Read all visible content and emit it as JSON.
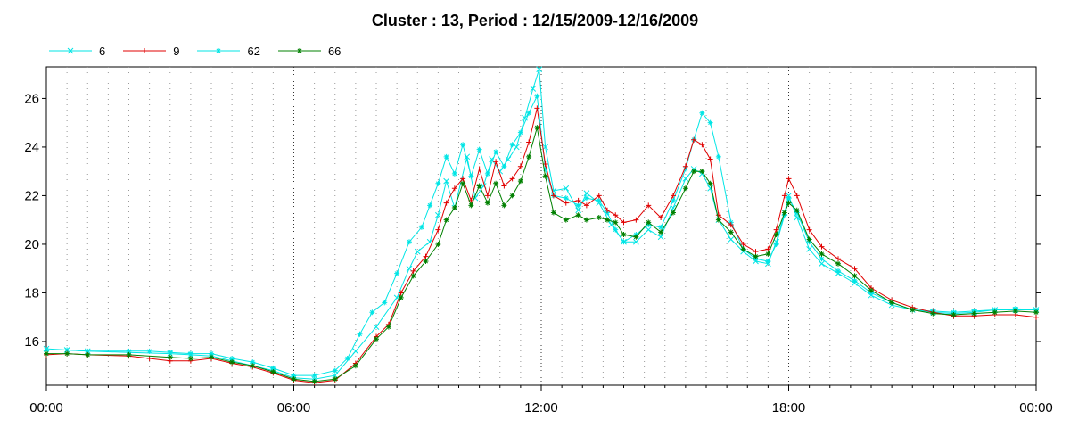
{
  "chart_data": {
    "type": "line",
    "title": "Cluster : 13, Period : 12/15/2009-12/16/2009",
    "xlabel": "",
    "ylabel": "",
    "x_unit": "hours",
    "xlim": [
      0,
      24
    ],
    "ylim": [
      14.2,
      27.3
    ],
    "x_ticks": [
      0,
      6,
      12,
      18,
      24
    ],
    "x_tick_labels": [
      "00:00",
      "06:00",
      "12:00",
      "18:00",
      "00:00"
    ],
    "y_ticks": [
      16,
      18,
      20,
      22,
      24,
      26
    ],
    "y_tick_labels": [
      "16",
      "18",
      "20",
      "22",
      "24",
      "26"
    ],
    "grid": true,
    "legend_position": "top-left",
    "series": [
      {
        "name": "6",
        "color": "#00e5e5",
        "marker": "x",
        "points": [
          [
            0,
            15.7
          ],
          [
            0.5,
            15.65
          ],
          [
            1,
            15.6
          ],
          [
            2,
            15.55
          ],
          [
            3,
            15.5
          ],
          [
            3.5,
            15.45
          ],
          [
            4,
            15.4
          ],
          [
            4.5,
            15.2
          ],
          [
            5,
            15.0
          ],
          [
            5.5,
            14.8
          ],
          [
            6,
            14.5
          ],
          [
            6.5,
            14.45
          ],
          [
            7,
            14.6
          ],
          [
            7.5,
            15.6
          ],
          [
            8,
            16.6
          ],
          [
            8.5,
            17.8
          ],
          [
            8.8,
            19.0
          ],
          [
            9,
            19.7
          ],
          [
            9.3,
            20.1
          ],
          [
            9.5,
            21.2
          ],
          [
            9.7,
            22.6
          ],
          [
            9.9,
            21.5
          ],
          [
            10.2,
            23.6
          ],
          [
            10.4,
            21.9
          ],
          [
            10.6,
            22.4
          ],
          [
            10.8,
            23.5
          ],
          [
            11,
            23.0
          ],
          [
            11.2,
            23.5
          ],
          [
            11.4,
            24.0
          ],
          [
            11.6,
            25.2
          ],
          [
            11.8,
            26.4
          ],
          [
            11.95,
            27.2
          ],
          [
            12.1,
            24.0
          ],
          [
            12.3,
            22.2
          ],
          [
            12.6,
            22.3
          ],
          [
            12.9,
            21.4
          ],
          [
            13.1,
            22.1
          ],
          [
            13.4,
            21.7
          ],
          [
            13.7,
            20.8
          ],
          [
            14,
            20.1
          ],
          [
            14.3,
            20.1
          ],
          [
            14.6,
            20.6
          ],
          [
            14.9,
            20.3
          ],
          [
            15.2,
            21.5
          ],
          [
            15.5,
            22.7
          ],
          [
            15.7,
            23.1
          ],
          [
            15.9,
            22.9
          ],
          [
            16.1,
            22.3
          ],
          [
            16.3,
            21.0
          ],
          [
            16.6,
            20.2
          ],
          [
            16.9,
            19.7
          ],
          [
            17.2,
            19.3
          ],
          [
            17.5,
            19.2
          ],
          [
            17.7,
            20.1
          ],
          [
            17.9,
            21.3
          ],
          [
            18.0,
            22.0
          ],
          [
            18.2,
            21.1
          ],
          [
            18.5,
            19.8
          ],
          [
            18.8,
            19.2
          ],
          [
            19.2,
            18.8
          ],
          [
            19.6,
            18.4
          ],
          [
            20,
            17.9
          ],
          [
            20.5,
            17.5
          ],
          [
            21,
            17.3
          ],
          [
            21.5,
            17.2
          ],
          [
            22,
            17.15
          ],
          [
            22.5,
            17.2
          ],
          [
            23,
            17.3
          ],
          [
            23.5,
            17.3
          ],
          [
            24,
            17.3
          ]
        ]
      },
      {
        "name": "9",
        "color": "#e00000",
        "marker": "+",
        "points": [
          [
            0,
            15.45
          ],
          [
            0.5,
            15.5
          ],
          [
            1,
            15.45
          ],
          [
            2,
            15.4
          ],
          [
            2.5,
            15.3
          ],
          [
            3,
            15.2
          ],
          [
            3.5,
            15.2
          ],
          [
            4,
            15.3
          ],
          [
            4.5,
            15.1
          ],
          [
            5,
            14.95
          ],
          [
            5.5,
            14.7
          ],
          [
            6,
            14.4
          ],
          [
            6.5,
            14.3
          ],
          [
            7,
            14.4
          ],
          [
            7.5,
            15.1
          ],
          [
            8,
            16.2
          ],
          [
            8.3,
            16.7
          ],
          [
            8.6,
            18.0
          ],
          [
            8.9,
            18.9
          ],
          [
            9.2,
            19.5
          ],
          [
            9.5,
            20.6
          ],
          [
            9.7,
            21.7
          ],
          [
            9.9,
            22.3
          ],
          [
            10.1,
            22.7
          ],
          [
            10.3,
            21.8
          ],
          [
            10.5,
            23.1
          ],
          [
            10.7,
            22.0
          ],
          [
            10.9,
            23.4
          ],
          [
            11.1,
            22.4
          ],
          [
            11.3,
            22.7
          ],
          [
            11.5,
            23.2
          ],
          [
            11.7,
            24.2
          ],
          [
            11.9,
            25.6
          ],
          [
            12.1,
            23.3
          ],
          [
            12.3,
            22.0
          ],
          [
            12.6,
            21.7
          ],
          [
            12.9,
            21.8
          ],
          [
            13.1,
            21.6
          ],
          [
            13.4,
            22.0
          ],
          [
            13.6,
            21.4
          ],
          [
            13.8,
            21.2
          ],
          [
            14,
            20.9
          ],
          [
            14.3,
            21.0
          ],
          [
            14.6,
            21.6
          ],
          [
            14.9,
            21.1
          ],
          [
            15.2,
            22.0
          ],
          [
            15.5,
            23.2
          ],
          [
            15.7,
            24.3
          ],
          [
            15.9,
            24.1
          ],
          [
            16.1,
            23.5
          ],
          [
            16.3,
            21.2
          ],
          [
            16.6,
            20.8
          ],
          [
            16.9,
            20.0
          ],
          [
            17.2,
            19.7
          ],
          [
            17.5,
            19.8
          ],
          [
            17.7,
            20.6
          ],
          [
            17.9,
            22.0
          ],
          [
            18.0,
            22.7
          ],
          [
            18.2,
            22.0
          ],
          [
            18.5,
            20.6
          ],
          [
            18.8,
            19.9
          ],
          [
            19.2,
            19.4
          ],
          [
            19.6,
            19.0
          ],
          [
            20,
            18.2
          ],
          [
            20.5,
            17.7
          ],
          [
            21,
            17.4
          ],
          [
            21.5,
            17.2
          ],
          [
            22,
            17.05
          ],
          [
            22.5,
            17.05
          ],
          [
            23,
            17.1
          ],
          [
            23.5,
            17.1
          ],
          [
            24,
            17.0
          ]
        ]
      },
      {
        "name": "62",
        "color": "#00e5e5",
        "marker": "*",
        "points": [
          [
            0,
            15.65
          ],
          [
            0.5,
            15.65
          ],
          [
            1,
            15.6
          ],
          [
            2,
            15.6
          ],
          [
            2.5,
            15.6
          ],
          [
            3,
            15.55
          ],
          [
            3.5,
            15.5
          ],
          [
            4,
            15.5
          ],
          [
            4.5,
            15.3
          ],
          [
            5,
            15.15
          ],
          [
            5.5,
            14.9
          ],
          [
            6,
            14.6
          ],
          [
            6.5,
            14.6
          ],
          [
            7,
            14.8
          ],
          [
            7.3,
            15.3
          ],
          [
            7.6,
            16.3
          ],
          [
            7.9,
            17.2
          ],
          [
            8.2,
            17.6
          ],
          [
            8.5,
            18.8
          ],
          [
            8.8,
            20.1
          ],
          [
            9.1,
            20.7
          ],
          [
            9.3,
            21.6
          ],
          [
            9.5,
            22.5
          ],
          [
            9.7,
            23.6
          ],
          [
            9.9,
            22.9
          ],
          [
            10.1,
            24.1
          ],
          [
            10.3,
            22.8
          ],
          [
            10.5,
            23.9
          ],
          [
            10.7,
            22.9
          ],
          [
            10.9,
            23.8
          ],
          [
            11.1,
            23.2
          ],
          [
            11.3,
            24.1
          ],
          [
            11.5,
            24.6
          ],
          [
            11.7,
            25.4
          ],
          [
            11.9,
            26.1
          ],
          [
            12.1,
            23.1
          ],
          [
            12.3,
            22.0
          ],
          [
            12.6,
            21.9
          ],
          [
            12.9,
            21.6
          ],
          [
            13.1,
            21.9
          ],
          [
            13.4,
            21.8
          ],
          [
            13.6,
            21.3
          ],
          [
            13.8,
            20.6
          ],
          [
            14,
            20.1
          ],
          [
            14.3,
            20.4
          ],
          [
            14.6,
            20.8
          ],
          [
            14.9,
            20.7
          ],
          [
            15.2,
            21.8
          ],
          [
            15.5,
            23.1
          ],
          [
            15.7,
            24.3
          ],
          [
            15.9,
            25.4
          ],
          [
            16.1,
            25.0
          ],
          [
            16.3,
            23.6
          ],
          [
            16.6,
            20.9
          ],
          [
            16.9,
            19.8
          ],
          [
            17.2,
            19.4
          ],
          [
            17.5,
            19.3
          ],
          [
            17.7,
            20.0
          ],
          [
            17.9,
            21.2
          ],
          [
            18.0,
            21.9
          ],
          [
            18.2,
            21.3
          ],
          [
            18.5,
            20.1
          ],
          [
            18.8,
            19.4
          ],
          [
            19.2,
            18.9
          ],
          [
            19.6,
            18.5
          ],
          [
            20,
            18.0
          ],
          [
            20.5,
            17.6
          ],
          [
            21,
            17.3
          ],
          [
            21.5,
            17.25
          ],
          [
            22,
            17.2
          ],
          [
            22.5,
            17.25
          ],
          [
            23,
            17.3
          ],
          [
            23.5,
            17.35
          ],
          [
            24,
            17.3
          ]
        ]
      },
      {
        "name": "66",
        "color": "#008000",
        "marker": "*",
        "points": [
          [
            0,
            15.5
          ],
          [
            0.5,
            15.5
          ],
          [
            1,
            15.45
          ],
          [
            2,
            15.45
          ],
          [
            3,
            15.35
          ],
          [
            3.5,
            15.3
          ],
          [
            4,
            15.35
          ],
          [
            4.5,
            15.15
          ],
          [
            5,
            15.0
          ],
          [
            5.5,
            14.75
          ],
          [
            6,
            14.45
          ],
          [
            6.5,
            14.35
          ],
          [
            7,
            14.45
          ],
          [
            7.5,
            15.0
          ],
          [
            8,
            16.1
          ],
          [
            8.3,
            16.6
          ],
          [
            8.6,
            17.8
          ],
          [
            8.9,
            18.7
          ],
          [
            9.2,
            19.3
          ],
          [
            9.5,
            20.0
          ],
          [
            9.7,
            21.0
          ],
          [
            9.9,
            21.5
          ],
          [
            10.1,
            22.5
          ],
          [
            10.3,
            21.6
          ],
          [
            10.5,
            22.4
          ],
          [
            10.7,
            21.7
          ],
          [
            10.9,
            22.5
          ],
          [
            11.1,
            21.6
          ],
          [
            11.3,
            22.0
          ],
          [
            11.5,
            22.6
          ],
          [
            11.7,
            23.6
          ],
          [
            11.9,
            24.8
          ],
          [
            12.1,
            22.8
          ],
          [
            12.3,
            21.3
          ],
          [
            12.6,
            21.0
          ],
          [
            12.9,
            21.2
          ],
          [
            13.1,
            21.0
          ],
          [
            13.4,
            21.1
          ],
          [
            13.6,
            21.0
          ],
          [
            13.8,
            20.9
          ],
          [
            14,
            20.4
          ],
          [
            14.3,
            20.3
          ],
          [
            14.6,
            20.9
          ],
          [
            14.9,
            20.5
          ],
          [
            15.2,
            21.3
          ],
          [
            15.5,
            22.3
          ],
          [
            15.7,
            23.0
          ],
          [
            15.9,
            23.0
          ],
          [
            16.1,
            22.5
          ],
          [
            16.3,
            21.0
          ],
          [
            16.6,
            20.5
          ],
          [
            16.9,
            19.8
          ],
          [
            17.2,
            19.5
          ],
          [
            17.5,
            19.6
          ],
          [
            17.7,
            20.4
          ],
          [
            17.9,
            21.3
          ],
          [
            18.0,
            21.7
          ],
          [
            18.2,
            21.4
          ],
          [
            18.5,
            20.2
          ],
          [
            18.8,
            19.6
          ],
          [
            19.2,
            19.2
          ],
          [
            19.6,
            18.7
          ],
          [
            20,
            18.1
          ],
          [
            20.5,
            17.6
          ],
          [
            21,
            17.3
          ],
          [
            21.5,
            17.15
          ],
          [
            22,
            17.1
          ],
          [
            22.5,
            17.15
          ],
          [
            23,
            17.2
          ],
          [
            23.5,
            17.25
          ],
          [
            24,
            17.2
          ]
        ]
      }
    ]
  }
}
